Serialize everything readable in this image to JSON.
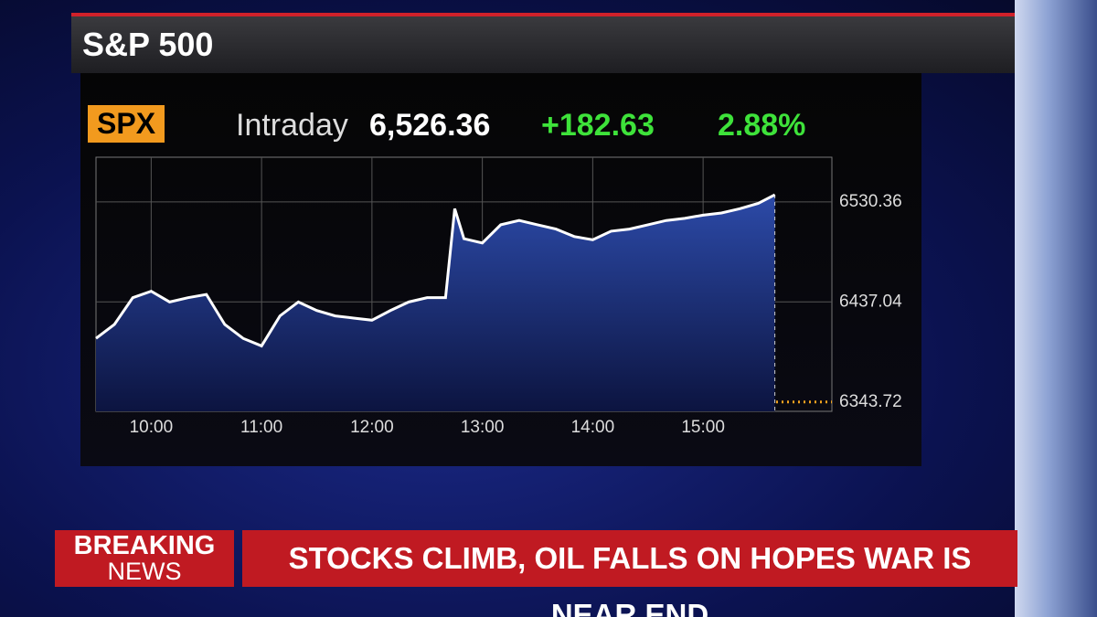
{
  "header": {
    "title": "S&P 500",
    "ticker": "SPX",
    "mode": "Intraday",
    "last": "6,526.36",
    "change": "+182.63",
    "percent": "2.88%"
  },
  "chart_data": {
    "type": "line",
    "x": [
      "09:30",
      "09:40",
      "09:50",
      "10:00",
      "10:10",
      "10:20",
      "10:30",
      "10:40",
      "10:50",
      "11:00",
      "11:10",
      "11:20",
      "11:30",
      "11:40",
      "11:50",
      "12:00",
      "12:10",
      "12:20",
      "12:30",
      "12:40",
      "12:45",
      "12:50",
      "13:00",
      "13:10",
      "13:20",
      "13:30",
      "13:40",
      "13:50",
      "14:00",
      "14:10",
      "14:20",
      "14:30",
      "14:40",
      "14:50",
      "15:00",
      "15:10",
      "15:20",
      "15:30",
      "15:39"
    ],
    "series": [
      {
        "color": "#ffffff",
        "values": [
          6403,
          6416,
          6441,
          6447,
          6437,
          6441,
          6444,
          6416,
          6403,
          6396,
          6424,
          6437,
          6429,
          6424,
          6422,
          6420,
          6429,
          6437,
          6441,
          6441,
          6524,
          6496,
          6492,
          6509,
          6513,
          6509,
          6505,
          6498,
          6495,
          6503,
          6505,
          6509,
          6513,
          6515,
          6518,
          6520,
          6524,
          6529,
          6537
        ]
      }
    ],
    "xlim": [
      "09:30",
      "16:10"
    ],
    "xticks": [
      "10:00",
      "11:00",
      "12:00",
      "13:00",
      "14:00",
      "15:00"
    ],
    "ylim": [
      6335,
      6572
    ],
    "yticks": [
      6343.72,
      6437.04,
      6530.36
    ],
    "grid": true
  },
  "banner": {
    "label_top": "BREAKING",
    "label_bottom": "NEWS",
    "headline": "STOCKS CLIMB, OIL FALLS ON HOPES WAR IS NEAR END"
  }
}
